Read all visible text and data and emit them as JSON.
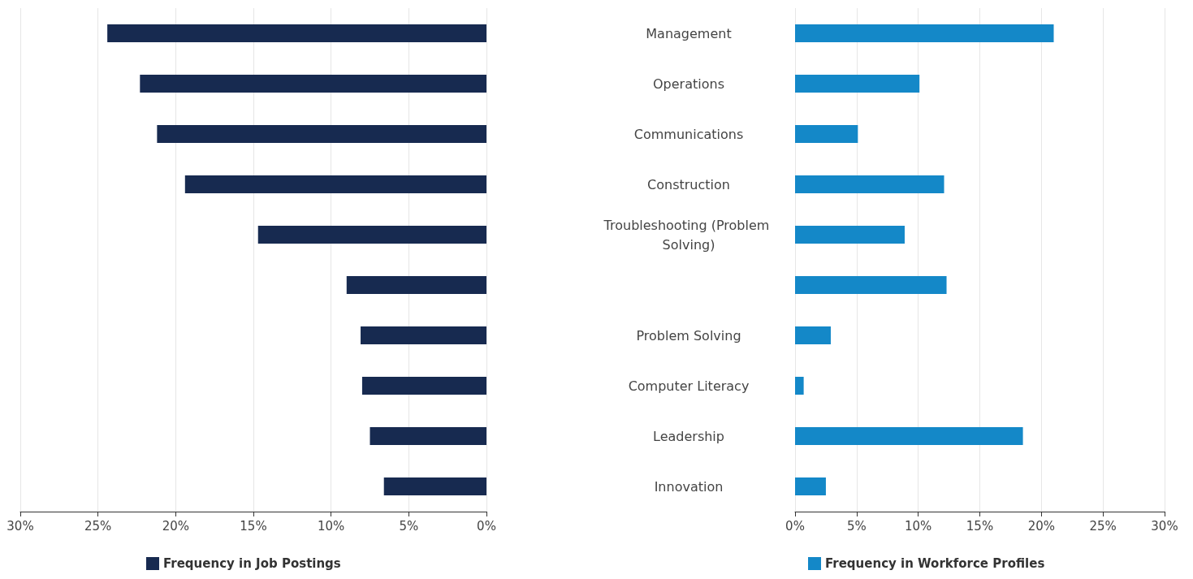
{
  "chart_data": [
    {
      "type": "bar",
      "orientation": "horizontal",
      "categories": [
        "Management",
        "Operations",
        "Communications",
        "Construction",
        "Troubleshooting (Problem Solving)",
        null,
        "Problem Solving",
        "Computer Literacy",
        "Leadership",
        "Innovation"
      ],
      "series": [
        {
          "name": "Frequency in Job Postings",
          "color": "#172a50",
          "values": [
            24.4,
            22.3,
            21.2,
            19.4,
            14.7,
            9.0,
            8.1,
            8.0,
            7.5,
            6.6
          ]
        }
      ],
      "xlim": [
        30,
        0
      ],
      "xticks": [
        {
          "value": 30,
          "label": "30%"
        },
        {
          "value": 25,
          "label": "25%"
        },
        {
          "value": 20,
          "label": "20%"
        },
        {
          "value": 15,
          "label": "15%"
        },
        {
          "value": 10,
          "label": "10%"
        },
        {
          "value": 5,
          "label": "5%"
        },
        {
          "value": 0,
          "label": "0%"
        }
      ],
      "grid": "x",
      "legend": "bottom",
      "tick_labels": "x"
    },
    {
      "type": "bar",
      "orientation": "horizontal",
      "categories": [
        "Management",
        "Operations",
        "Communications",
        "Construction",
        "Troubleshooting (Problem Solving)",
        null,
        "Problem Solving",
        "Computer Literacy",
        "Leadership",
        "Innovation"
      ],
      "series": [
        {
          "name": "Frequency in Workforce Profiles",
          "color": "#1488c8",
          "values": [
            21.0,
            10.1,
            5.1,
            12.1,
            8.9,
            12.3,
            2.9,
            0.7,
            18.5,
            2.5
          ]
        }
      ],
      "xlim": [
        0,
        30
      ],
      "xticks": [
        {
          "value": 0,
          "label": "0%"
        },
        {
          "value": 5,
          "label": "5%"
        },
        {
          "value": 10,
          "label": "10%"
        },
        {
          "value": 15,
          "label": "15%"
        },
        {
          "value": 20,
          "label": "20%"
        },
        {
          "value": 25,
          "label": "25%"
        },
        {
          "value": 30,
          "label": "30%"
        }
      ],
      "grid": "x",
      "legend": "bottom"
    }
  ]
}
